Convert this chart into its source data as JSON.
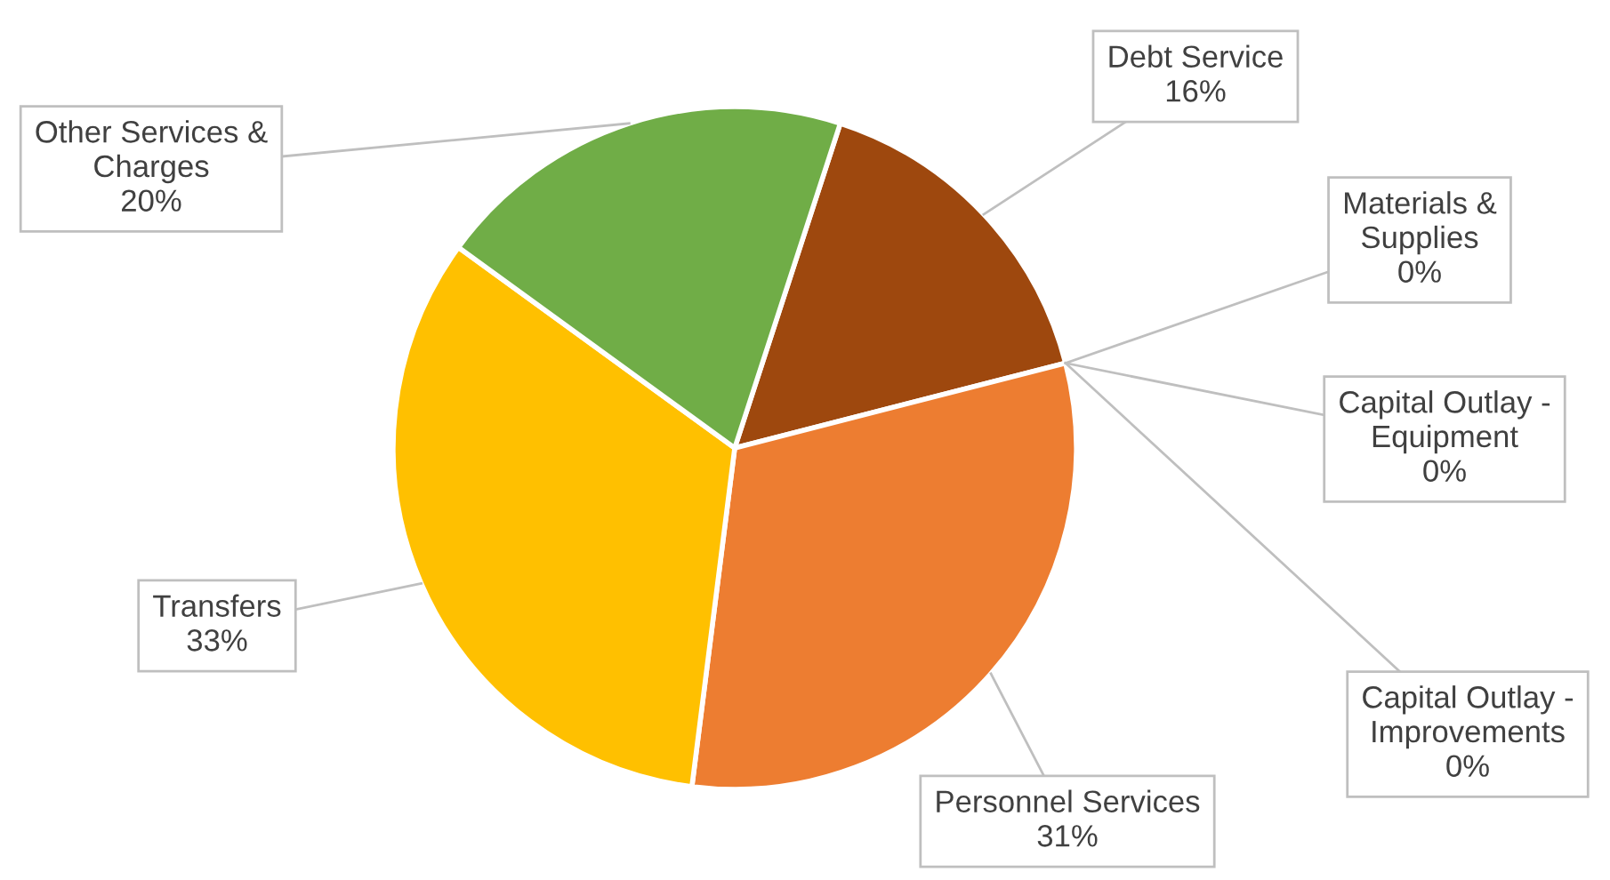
{
  "chart_data": {
    "type": "pie",
    "categories": [
      "Debt Service",
      "Materials & Supplies",
      "Capital Outlay - Equipment",
      "Capital Outlay - Improvements",
      "Personnel Services",
      "Transfers",
      "Other Services & Charges"
    ],
    "values": [
      16,
      0,
      0,
      0,
      31,
      33,
      20
    ],
    "colors": [
      "#9e480e",
      "#a5a5a5",
      "#5b9bd5",
      "#4472c4",
      "#ed7d31",
      "#ffc000",
      "#70ad47"
    ],
    "value_labels": [
      "16%",
      "0%",
      "0%",
      "0%",
      "31%",
      "33%",
      "20%"
    ]
  }
}
